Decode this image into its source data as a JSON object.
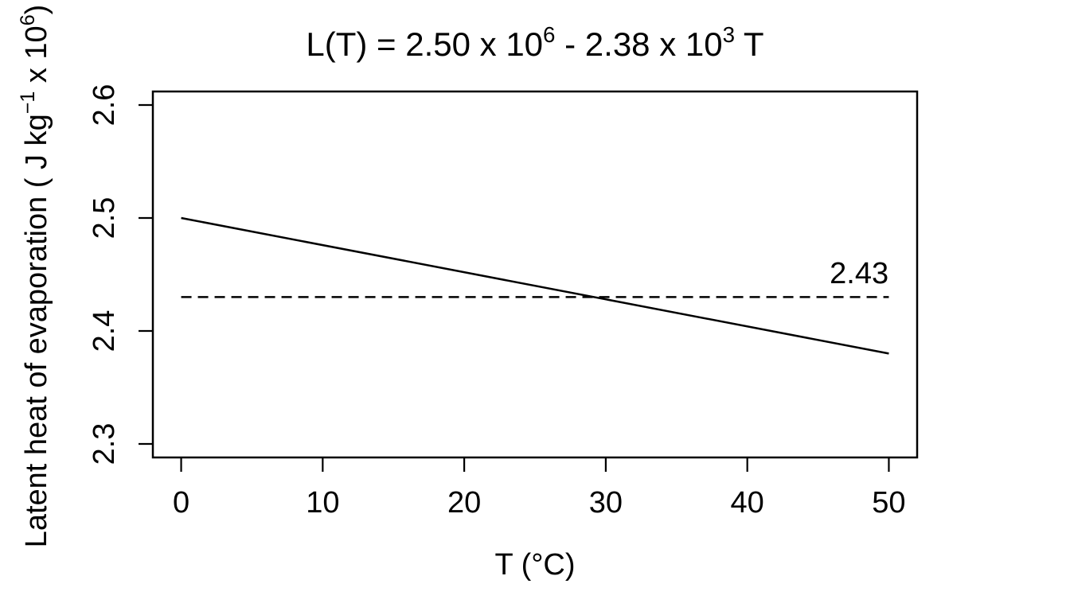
{
  "figure": {
    "background_color": "#ffffff",
    "foreground_color": "#000000"
  },
  "chart_data": {
    "type": "line",
    "title": "L(T) = 2.50 x 10^6 - 2.38 x 10^3 T",
    "title_segments": [
      {
        "t": "L(T) = 2.50 x 10"
      },
      {
        "t": "6",
        "sup": true
      },
      {
        "t": " - 2.38 x 10"
      },
      {
        "t": "3",
        "sup": true
      },
      {
        "t": " T"
      }
    ],
    "xlabel": "T (°C)",
    "ylabel": "Latent heat of evaporation ( J kg^-1 x 10^6 )",
    "ylabel_segments": [
      {
        "t": "Latent heat of evaporation  ( J kg"
      },
      {
        "t": "−1",
        "sup": true
      },
      {
        "t": " x 10"
      },
      {
        "t": "6",
        "sup": true
      },
      {
        "t": ")"
      }
    ],
    "xlim": [
      -2,
      52
    ],
    "ylim": [
      2.288,
      2.612
    ],
    "x_ticks": {
      "values": [
        0,
        10,
        20,
        30,
        40,
        50
      ],
      "labels": [
        "0",
        "10",
        "20",
        "30",
        "40",
        "50"
      ]
    },
    "y_ticks": {
      "values": [
        2.3,
        2.4,
        2.5,
        2.6
      ],
      "labels": [
        "2.3",
        "2.4",
        "2.5",
        "2.6"
      ]
    },
    "grid": false,
    "legend": "none",
    "line_color": "#000000",
    "series": [
      {
        "name": "latent-heat-line",
        "style": "solid",
        "color": "#000000",
        "x": [
          0,
          50
        ],
        "y": [
          2.5,
          2.38
        ]
      },
      {
        "name": "reference-line-2.43",
        "style": "dashed",
        "color": "#000000",
        "x": [
          0,
          50
        ],
        "y": [
          2.43,
          2.43
        ]
      }
    ],
    "annotations": [
      {
        "text": "2.43",
        "x": 47.9,
        "y": 2.451
      }
    ]
  }
}
